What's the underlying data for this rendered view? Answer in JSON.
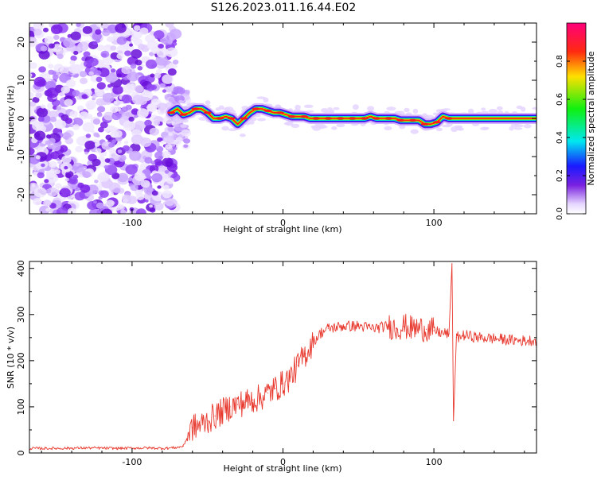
{
  "title": "S126.2023.011.16.44.E02",
  "chart_data": [
    {
      "type": "heatmap",
      "xlabel": "Height of straight line (km)",
      "ylabel": "Frequency (Hz)",
      "xlim": [
        -168,
        168
      ],
      "ylim": [
        -25,
        25
      ],
      "x_ticks": [
        -100,
        0,
        100
      ],
      "y_ticks": [
        -20,
        -10,
        0,
        10,
        20
      ],
      "noise_region_x": [
        -168,
        -74
      ],
      "signal_track": {
        "x": [
          -74,
          -70,
          -66,
          -62,
          -58,
          -54,
          -50,
          -46,
          -42,
          -38,
          -34,
          -30,
          -26,
          -22,
          -18,
          -14,
          -10,
          -6,
          -2,
          2,
          6,
          10,
          14,
          18,
          22,
          26,
          30,
          34,
          38,
          42,
          46,
          50,
          54,
          58,
          62,
          66,
          70,
          74,
          78,
          82,
          86,
          90,
          94,
          98,
          102,
          106,
          110,
          168
        ],
        "y": [
          1.5,
          2.5,
          1.0,
          1.5,
          2.5,
          2.5,
          1.5,
          0.0,
          0.0,
          0.5,
          0.0,
          -1.5,
          0.0,
          1.5,
          2.5,
          2.5,
          2.0,
          1.5,
          1.5,
          1.0,
          0.5,
          0.5,
          0.5,
          0.0,
          0.0,
          0.0,
          0.0,
          0.0,
          0.0,
          0.0,
          0.0,
          0.0,
          0.0,
          0.5,
          0.0,
          0.0,
          0.0,
          0.0,
          -0.5,
          -0.5,
          -0.5,
          -0.5,
          -1.5,
          -1.5,
          -1.0,
          0.5,
          0.0,
          0.0
        ]
      },
      "colorbar": {
        "label": "Normalized spectral amplitude",
        "range": [
          0,
          1
        ],
        "ticks": [
          "0.0",
          "0.2",
          "0.4",
          "0.6",
          "0.8"
        ]
      }
    },
    {
      "type": "line",
      "xlabel": "Height of straight line (km)",
      "ylabel": "SNR (10 * v/v)",
      "xlim": [
        -168,
        168
      ],
      "ylim": [
        0,
        415
      ],
      "x_ticks": [
        -100,
        0,
        100
      ],
      "y_ticks": [
        0,
        100,
        200,
        300,
        400
      ],
      "series": [
        {
          "color": "#e8392e",
          "x": [
            -168,
            -150,
            -130,
            -110,
            -90,
            -80,
            -70,
            -66,
            -62,
            -60,
            -55,
            -50,
            -45,
            -40,
            -35,
            -30,
            -25,
            -20,
            -15,
            -10,
            -5,
            0,
            5,
            10,
            15,
            20,
            25,
            30,
            40,
            50,
            60,
            70,
            75,
            80,
            85,
            90,
            95,
            100,
            105,
            110,
            112,
            113,
            115,
            120,
            130,
            140,
            150,
            160,
            168
          ],
          "y": [
            10,
            10,
            11,
            10,
            11,
            10,
            12,
            15,
            45,
            55,
            60,
            70,
            80,
            90,
            100,
            105,
            110,
            115,
            120,
            130,
            140,
            150,
            165,
            190,
            215,
            240,
            260,
            270,
            275,
            275,
            270,
            275,
            270,
            275,
            270,
            270,
            268,
            265,
            260,
            258,
            410,
            70,
            250,
            255,
            250,
            248,
            245,
            243,
            245
          ]
        }
      ]
    }
  ]
}
